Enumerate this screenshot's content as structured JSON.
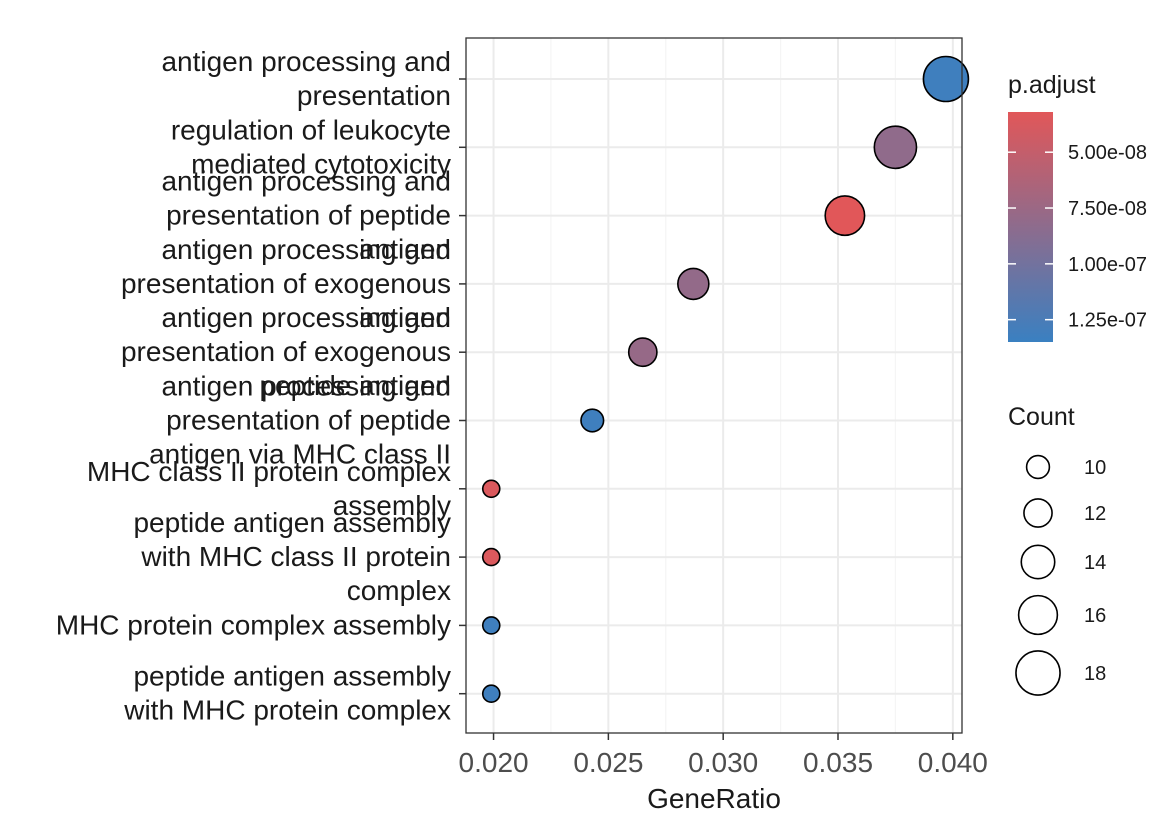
{
  "chart_data": {
    "type": "scatter",
    "xlabel": "GeneRatio",
    "xlim": [
      0.0188,
      0.0404
    ],
    "xticks": [
      0.02,
      0.025,
      0.03,
      0.035,
      0.04
    ],
    "xtick_labels": [
      "0.020",
      "0.025",
      "0.030",
      "0.035",
      "0.040"
    ],
    "grid": true,
    "points": [
      {
        "term_lines": [
          "antigen processing and",
          "presentation"
        ],
        "gene_ratio": 0.0397,
        "count": 19,
        "p_adjust": 1.32e-07
      },
      {
        "term_lines": [
          "regulation of leukocyte",
          "mediated cytotoxicity"
        ],
        "gene_ratio": 0.0375,
        "count": 18,
        "p_adjust": 8.2e-08
      },
      {
        "term_lines": [
          "antigen processing and",
          "presentation of peptide",
          "antigen"
        ],
        "gene_ratio": 0.0353,
        "count": 17,
        "p_adjust": 3.2e-08
      },
      {
        "term_lines": [
          "antigen processing and",
          "presentation of exogenous",
          "antigen"
        ],
        "gene_ratio": 0.0287,
        "count": 14,
        "p_adjust": 8e-08
      },
      {
        "term_lines": [
          "antigen processing and",
          "presentation of exogenous",
          "peptide antigen"
        ],
        "gene_ratio": 0.0265,
        "count": 13,
        "p_adjust": 7.8e-08
      },
      {
        "term_lines": [
          "antigen processing and",
          "presentation of peptide",
          "antigen via MHC class II"
        ],
        "gene_ratio": 0.0243,
        "count": 11,
        "p_adjust": 1.32e-07
      },
      {
        "term_lines": [
          "MHC class II protein complex",
          "assembly"
        ],
        "gene_ratio": 0.0199,
        "count": 9,
        "p_adjust": 3.6e-08
      },
      {
        "term_lines": [
          "peptide antigen assembly",
          "with MHC class II protein",
          "complex"
        ],
        "gene_ratio": 0.0199,
        "count": 9,
        "p_adjust": 3.6e-08
      },
      {
        "term_lines": [
          "MHC protein complex assembly"
        ],
        "gene_ratio": 0.0199,
        "count": 9,
        "p_adjust": 1.32e-07
      },
      {
        "term_lines": [
          "peptide antigen assembly",
          "with MHC protein complex"
        ],
        "gene_ratio": 0.0199,
        "count": 9,
        "p_adjust": 1.32e-07
      }
    ],
    "color_legend": {
      "title": "p.adjust",
      "range": [
        3.2e-08,
        1.35e-07
      ],
      "low_color": "#E15759",
      "high_color": "#3A80C1",
      "breaks": [
        5e-08,
        7.5e-08,
        1e-07,
        1.25e-07
      ],
      "labels": [
        "5.00e-08",
        "7.50e-08",
        "1.00e-07",
        "1.25e-07"
      ]
    },
    "size_legend": {
      "title": "Count",
      "breaks": [
        10,
        12,
        14,
        16,
        18
      ],
      "labels": [
        "10",
        "12",
        "14",
        "16",
        "18"
      ]
    },
    "colors": {
      "panel_border": "#333333",
      "grid_major": "#EBEBEB",
      "grid_minor": "#F5F5F5",
      "point_stroke": "#000000"
    }
  }
}
